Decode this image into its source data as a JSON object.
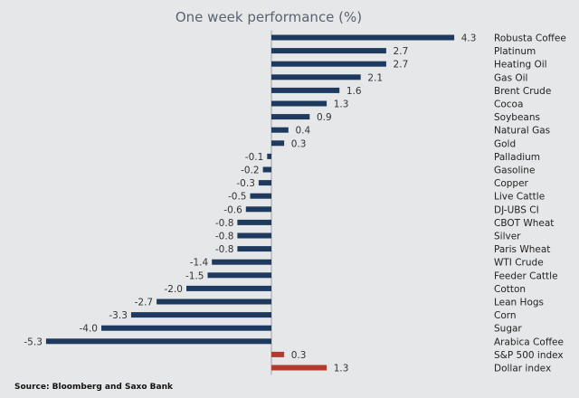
{
  "chart_data": {
    "type": "bar",
    "orientation": "horizontal",
    "title": "One week performance (%)",
    "source": "Source: Bloomberg and Saxo Bank",
    "categories": [
      "Robusta Coffee",
      "Platinum",
      "Heating Oil",
      "Gas Oil",
      "Brent Crude",
      "Cocoa",
      "Soybeans",
      "Natural Gas",
      "Gold",
      "Palladium",
      "Gasoline",
      "Copper",
      "Live Cattle",
      "DJ-UBS CI",
      "CBOT Wheat",
      "Silver",
      "Paris Wheat",
      "WTI Crude",
      "Feeder Cattle",
      "Cotton",
      "Lean Hogs",
      "Corn",
      "Sugar",
      "Arabica Coffee",
      "S&P 500 index",
      "Dollar index"
    ],
    "values": [
      4.3,
      2.7,
      2.7,
      2.1,
      1.6,
      1.3,
      0.9,
      0.4,
      0.3,
      -0.1,
      -0.2,
      -0.3,
      -0.5,
      -0.6,
      -0.8,
      -0.8,
      -0.8,
      -1.4,
      -1.5,
      -2.0,
      -2.7,
      -3.3,
      -4.0,
      -5.3,
      0.3,
      1.3
    ],
    "value_labels": [
      "4.3",
      "2.7",
      "2.7",
      "2.1",
      "1.6",
      "1.3",
      "0.9",
      "0.4",
      "0.3",
      "-0.1",
      "-0.2",
      "-0.3",
      "-0.5",
      "-0.6",
      "-0.8",
      "-0.8",
      "-0.8",
      "-1.4",
      "-1.5",
      "-2.0",
      "-2.7",
      "-3.3",
      "-4.0",
      "-5.3",
      "0.3",
      "1.3"
    ],
    "bar_colors": [
      "#1f3a5f",
      "#1f3a5f",
      "#1f3a5f",
      "#1f3a5f",
      "#1f3a5f",
      "#1f3a5f",
      "#1f3a5f",
      "#1f3a5f",
      "#1f3a5f",
      "#1f3a5f",
      "#1f3a5f",
      "#1f3a5f",
      "#1f3a5f",
      "#1f3a5f",
      "#1f3a5f",
      "#1f3a5f",
      "#1f3a5f",
      "#1f3a5f",
      "#1f3a5f",
      "#1f3a5f",
      "#1f3a5f",
      "#1f3a5f",
      "#1f3a5f",
      "#1f3a5f",
      "#b23a2e",
      "#b23a2e"
    ],
    "xlim": [
      -5.3,
      4.3
    ],
    "grid": false,
    "legend": false,
    "background": "#e6e7e8",
    "axis_color": "#9aa0a8"
  }
}
